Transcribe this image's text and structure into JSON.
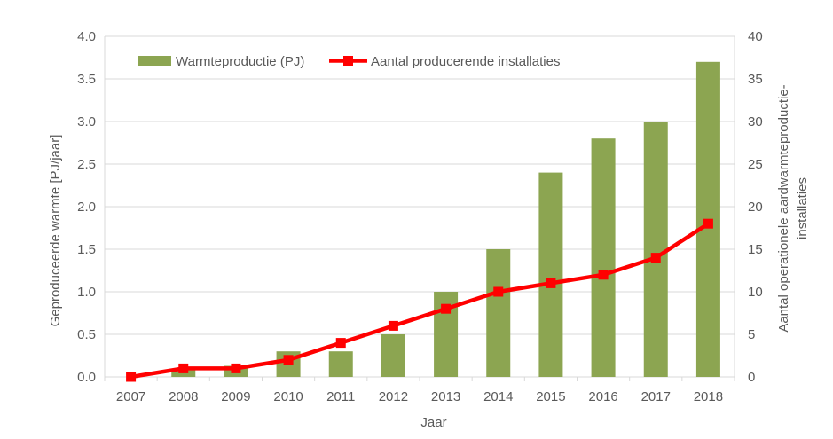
{
  "chart_data": {
    "type": "bar",
    "subtype": "combo-bar-line-dual-axis",
    "categories": [
      "2007",
      "2008",
      "2009",
      "2010",
      "2011",
      "2012",
      "2013",
      "2014",
      "2015",
      "2016",
      "2017",
      "2018"
    ],
    "series": [
      {
        "name": "Warmteproductie (PJ)",
        "type": "bar",
        "axis": "left",
        "color": "#8CA551",
        "values": [
          0,
          0.08,
          0.13,
          0.3,
          0.3,
          0.5,
          1.0,
          1.5,
          2.4,
          2.8,
          3.0,
          3.7
        ]
      },
      {
        "name": "Aantal producerende installaties",
        "type": "line",
        "axis": "right",
        "color": "#FF0000",
        "marker": "square",
        "values": [
          0,
          1,
          1,
          2,
          4,
          6,
          8,
          10,
          11,
          12,
          14,
          18
        ]
      }
    ],
    "xlabel": "Jaar",
    "left_axis": {
      "label": "Geproduceerde warmte [PJ/jaar]",
      "min": 0,
      "max": 4,
      "step": 0.5,
      "tick_labels": [
        "0.0",
        "0.5",
        "1.0",
        "1.5",
        "2.0",
        "2.5",
        "3.0",
        "3.5",
        "4.0"
      ]
    },
    "right_axis": {
      "label_line1": "Aantal operationele aardwarmteproductie-",
      "label_line2": "installaties",
      "min": 0,
      "max": 40,
      "step": 5,
      "tick_labels": [
        "0",
        "5",
        "10",
        "15",
        "20",
        "25",
        "30",
        "35",
        "40"
      ]
    },
    "legend": {
      "position": "top-inside",
      "items": [
        "Warmteproductie (PJ)",
        "Aantal producerende installaties"
      ]
    },
    "grid": "horizontal"
  },
  "colors": {
    "bar_green": "#8CA551",
    "line_red": "#FF0000",
    "text_gray": "#595959",
    "grid_gray": "#D9D9D9",
    "background": "#FFFFFF"
  }
}
